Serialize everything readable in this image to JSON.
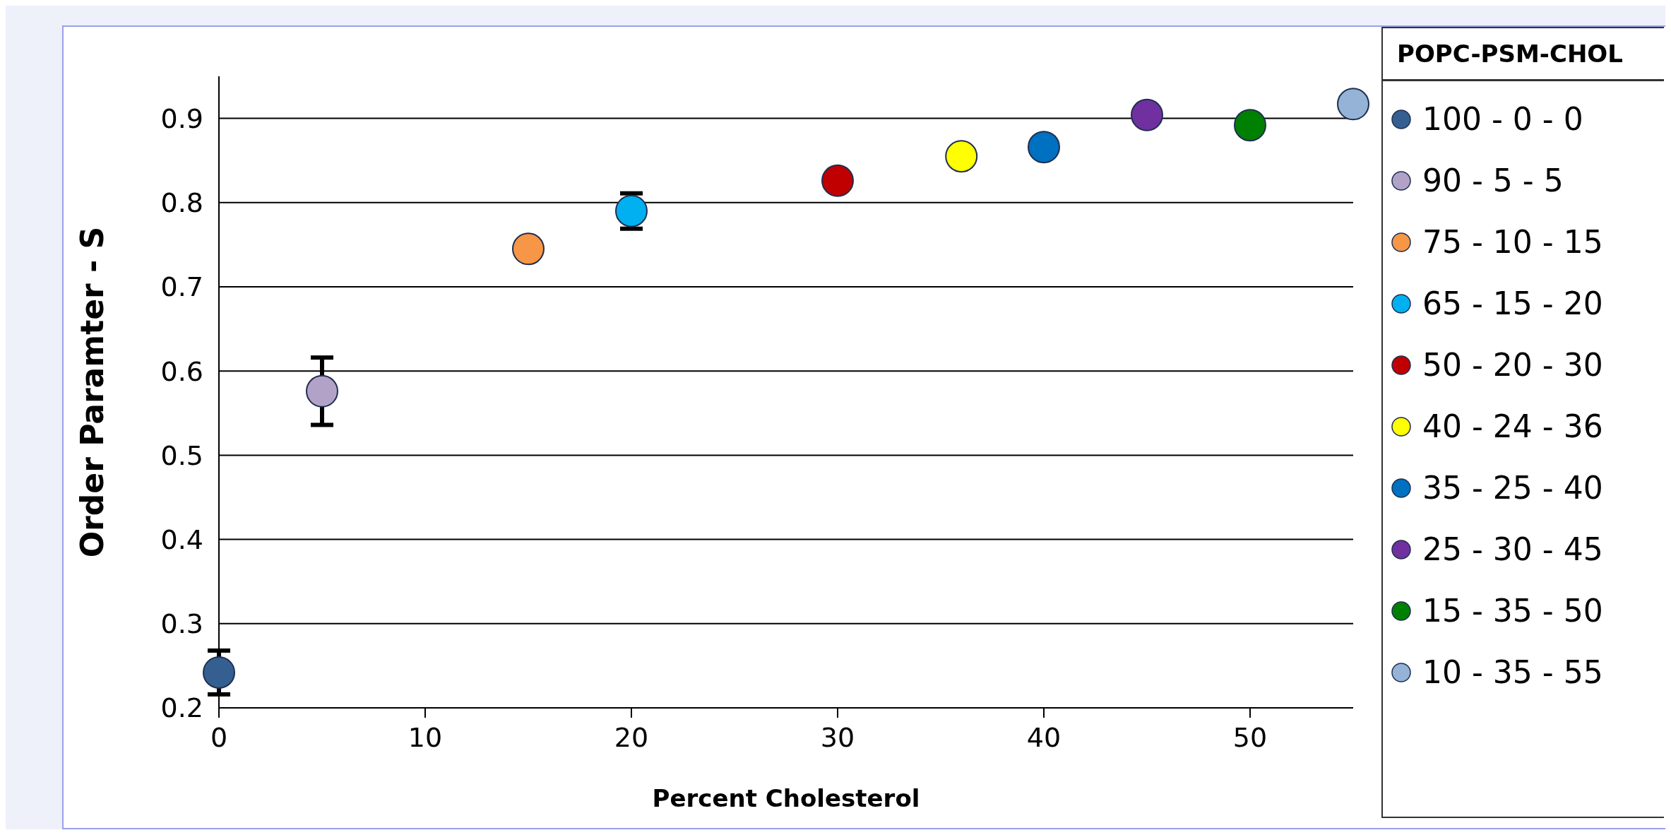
{
  "chart_data": {
    "type": "scatter",
    "xlabel": "Percent Cholesterol",
    "ylabel": "Order Paramter - S",
    "legend_title": "POPC-PSM-CHOL",
    "xlim": [
      0,
      55
    ],
    "xticks": [
      0,
      10,
      20,
      30,
      40,
      50
    ],
    "ylim": [
      0.2,
      0.95
    ],
    "yticks": [
      0.2,
      0.3,
      0.4,
      0.5,
      0.6,
      0.7,
      0.8,
      0.9
    ],
    "grid": "y",
    "legend": "right",
    "marker": "circle",
    "series": [
      {
        "name": "100 - 0 - 0",
        "color": "#365f91",
        "x": [
          0
        ],
        "values": [
          0.242
        ],
        "errors": [
          0.026
        ]
      },
      {
        "name": "90 - 5 - 5",
        "color": "#b3a2c7",
        "x": [
          5
        ],
        "values": [
          0.576
        ],
        "errors": [
          0.04
        ]
      },
      {
        "name": "75 - 10 - 15",
        "color": "#f79646",
        "x": [
          15
        ],
        "values": [
          0.745
        ]
      },
      {
        "name": "65 - 15 - 20",
        "color": "#00b0f0",
        "x": [
          20
        ],
        "values": [
          0.79
        ],
        "errors": [
          0.021
        ]
      },
      {
        "name": "50 - 20 - 30",
        "color": "#c00000",
        "x": [
          30
        ],
        "values": [
          0.826
        ]
      },
      {
        "name": "40 - 24 - 36",
        "color": "#ffff00",
        "x": [
          36
        ],
        "values": [
          0.855
        ]
      },
      {
        "name": "35 - 25 - 40",
        "color": "#0070c0",
        "x": [
          40
        ],
        "values": [
          0.866
        ]
      },
      {
        "name": "25 - 30 - 45",
        "color": "#7030a0",
        "x": [
          45
        ],
        "values": [
          0.904
        ]
      },
      {
        "name": "15 - 35 - 50",
        "color": "#008000",
        "x": [
          50
        ],
        "values": [
          0.892
        ]
      },
      {
        "name": "10 - 35 - 55",
        "color": "#95b3d7",
        "x": [
          55
        ],
        "values": [
          0.917
        ]
      }
    ]
  }
}
